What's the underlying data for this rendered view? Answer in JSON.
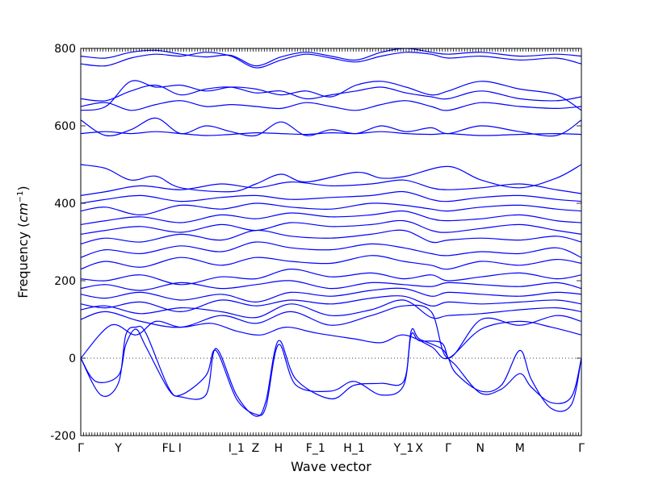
{
  "chart_data": {
    "type": "line",
    "title": "",
    "xlabel": "Wave vector",
    "ylabel": "Frequency (cm^-1)",
    "ylabel_text": "Frequency (",
    "ylabel_unit": "cm",
    "ylabel_exp": "−1",
    "ylabel_close": ")",
    "ylim": [
      -200,
      800
    ],
    "yticks": [
      -200,
      0,
      200,
      400,
      600,
      800
    ],
    "xlim": [
      0,
      1
    ],
    "xticks": [
      {
        "label": "Γ",
        "x": 0.0
      },
      {
        "label": "Y",
        "x": 0.075
      },
      {
        "label": "FL",
        "x": 0.175
      },
      {
        "label": "I",
        "x": 0.198
      },
      {
        "label": "I_1",
        "x": 0.311
      },
      {
        "label": "Z",
        "x": 0.349
      },
      {
        "label": "H",
        "x": 0.395
      },
      {
        "label": "F_1",
        "x": 0.469
      },
      {
        "label": "H_1",
        "x": 0.546
      },
      {
        "label": "Y_1",
        "x": 0.645
      },
      {
        "label": "X",
        "x": 0.676
      },
      {
        "label": "Γ",
        "x": 0.734
      },
      {
        "label": "N",
        "x": 0.798
      },
      {
        "label": "M",
        "x": 0.877
      },
      {
        "label": "Γ",
        "x": 1.0
      }
    ],
    "grid": false,
    "reference_line_y": 0,
    "color": "#0000ff",
    "series": [
      {
        "x": [
          0,
          0.03,
          0.075,
          0.09,
          0.11,
          0.13,
          0.175,
          0.2,
          0.25,
          0.27,
          0.311,
          0.35,
          0.37,
          0.395,
          0.43,
          0.5,
          0.546,
          0.6,
          0.645,
          0.66,
          0.676,
          0.72,
          0.734,
          0.75,
          0.798,
          0.84,
          0.877,
          0.9,
          0.94,
          0.98,
          1.0
        ],
        "values": [
          0,
          -60,
          -45,
          35,
          75,
          30,
          -80,
          -100,
          -95,
          25,
          -95,
          -150,
          -110,
          45,
          -55,
          -105,
          -70,
          -65,
          -60,
          60,
          45,
          40,
          0,
          -20,
          -90,
          -80,
          -40,
          -75,
          -115,
          -100,
          0
        ]
      },
      {
        "x": [
          0,
          0.04,
          0.075,
          0.09,
          0.11,
          0.13,
          0.175,
          0.2,
          0.25,
          0.27,
          0.311,
          0.35,
          0.37,
          0.395,
          0.43,
          0.5,
          0.546,
          0.6,
          0.645,
          0.66,
          0.676,
          0.72,
          0.734,
          0.75,
          0.798,
          0.84,
          0.877,
          0.9,
          0.94,
          0.98,
          1.0
        ],
        "values": [
          0,
          -95,
          -65,
          60,
          80,
          65,
          -75,
          -95,
          -45,
          20,
          -105,
          -145,
          -125,
          35,
          -70,
          -85,
          -60,
          -95,
          -70,
          70,
          50,
          25,
          0,
          -40,
          -85,
          -70,
          20,
          -55,
          -130,
          -120,
          0
        ]
      },
      {
        "x": [
          0,
          0.06,
          0.11,
          0.15,
          0.2,
          0.26,
          0.311,
          0.36,
          0.41,
          0.47,
          0.546,
          0.6,
          0.645,
          0.7,
          0.734,
          0.8,
          0.877,
          0.94,
          1.0
        ],
        "values": [
          0,
          85,
          60,
          95,
          80,
          90,
          70,
          60,
          80,
          65,
          50,
          40,
          60,
          30,
          0,
          75,
          95,
          80,
          60
        ]
      },
      {
        "x": [
          0,
          0.05,
          0.12,
          0.2,
          0.28,
          0.35,
          0.42,
          0.5,
          0.58,
          0.645,
          0.7,
          0.734,
          0.8,
          0.877,
          0.95,
          1.0
        ],
        "values": [
          100,
          120,
          95,
          80,
          110,
          90,
          120,
          85,
          110,
          135,
          120,
          0,
          100,
          85,
          110,
          95
        ]
      },
      {
        "x": [
          0,
          0.05,
          0.12,
          0.2,
          0.28,
          0.35,
          0.42,
          0.5,
          0.58,
          0.645,
          0.7,
          0.734,
          0.8,
          0.877,
          0.95,
          1.0
        ],
        "values": [
          125,
          135,
          115,
          130,
          120,
          105,
          140,
          110,
          125,
          150,
          105,
          110,
          115,
          125,
          130,
          120
        ]
      },
      {
        "x": [
          0,
          0.05,
          0.12,
          0.2,
          0.28,
          0.35,
          0.42,
          0.5,
          0.58,
          0.645,
          0.7,
          0.734,
          0.8,
          0.877,
          0.95,
          1.0
        ],
        "values": [
          140,
          130,
          145,
          120,
          150,
          135,
          150,
          140,
          155,
          160,
          135,
          145,
          140,
          145,
          150,
          140
        ]
      },
      {
        "x": [
          0,
          0.05,
          0.12,
          0.2,
          0.28,
          0.35,
          0.42,
          0.5,
          0.58,
          0.645,
          0.7,
          0.734,
          0.8,
          0.877,
          0.95,
          1.0
        ],
        "values": [
          165,
          155,
          170,
          150,
          165,
          145,
          170,
          160,
          175,
          180,
          160,
          170,
          165,
          160,
          170,
          165
        ]
      },
      {
        "x": [
          0,
          0.05,
          0.12,
          0.2,
          0.28,
          0.35,
          0.42,
          0.5,
          0.58,
          0.645,
          0.7,
          0.734,
          0.8,
          0.877,
          0.95,
          1.0
        ],
        "values": [
          180,
          190,
          175,
          195,
          180,
          190,
          200,
          180,
          195,
          190,
          185,
          195,
          190,
          185,
          195,
          180
        ]
      },
      {
        "x": [
          0,
          0.05,
          0.12,
          0.2,
          0.28,
          0.35,
          0.42,
          0.5,
          0.58,
          0.645,
          0.7,
          0.734,
          0.8,
          0.877,
          0.95,
          1.0
        ],
        "values": [
          205,
          200,
          215,
          190,
          210,
          205,
          230,
          210,
          220,
          205,
          215,
          200,
          210,
          220,
          205,
          215
        ]
      },
      {
        "x": [
          0,
          0.05,
          0.12,
          0.2,
          0.28,
          0.35,
          0.42,
          0.5,
          0.58,
          0.645,
          0.7,
          0.734,
          0.8,
          0.877,
          0.95,
          1.0
        ],
        "values": [
          230,
          250,
          235,
          260,
          240,
          260,
          250,
          245,
          265,
          250,
          240,
          230,
          250,
          240,
          255,
          245
        ]
      },
      {
        "x": [
          0,
          0.05,
          0.12,
          0.2,
          0.28,
          0.35,
          0.42,
          0.5,
          0.58,
          0.645,
          0.7,
          0.734,
          0.8,
          0.877,
          0.95,
          1.0
        ],
        "values": [
          260,
          280,
          270,
          290,
          275,
          300,
          285,
          280,
          295,
          285,
          270,
          265,
          275,
          270,
          285,
          260
        ]
      },
      {
        "x": [
          0,
          0.05,
          0.12,
          0.2,
          0.28,
          0.35,
          0.42,
          0.5,
          0.58,
          0.645,
          0.7,
          0.734,
          0.8,
          0.877,
          0.95,
          1.0
        ],
        "values": [
          295,
          310,
          300,
          320,
          305,
          330,
          315,
          310,
          320,
          330,
          300,
          305,
          310,
          305,
          315,
          300
        ]
      },
      {
        "x": [
          0,
          0.05,
          0.12,
          0.2,
          0.28,
          0.35,
          0.42,
          0.5,
          0.58,
          0.645,
          0.7,
          0.734,
          0.8,
          0.877,
          0.95,
          1.0
        ],
        "values": [
          320,
          330,
          340,
          325,
          345,
          330,
          350,
          340,
          345,
          355,
          330,
          325,
          335,
          345,
          330,
          320
        ]
      },
      {
        "x": [
          0,
          0.05,
          0.12,
          0.2,
          0.28,
          0.35,
          0.42,
          0.5,
          0.58,
          0.645,
          0.7,
          0.734,
          0.8,
          0.877,
          0.95,
          1.0
        ],
        "values": [
          345,
          355,
          365,
          350,
          370,
          360,
          375,
          365,
          370,
          380,
          360,
          355,
          360,
          370,
          355,
          350
        ]
      },
      {
        "x": [
          0,
          0.05,
          0.12,
          0.2,
          0.28,
          0.35,
          0.42,
          0.5,
          0.58,
          0.645,
          0.7,
          0.734,
          0.8,
          0.877,
          0.95,
          1.0
        ],
        "values": [
          380,
          390,
          370,
          395,
          385,
          400,
          390,
          385,
          400,
          395,
          385,
          380,
          390,
          395,
          385,
          380
        ]
      },
      {
        "x": [
          0,
          0.05,
          0.12,
          0.2,
          0.28,
          0.35,
          0.42,
          0.5,
          0.58,
          0.645,
          0.7,
          0.734,
          0.8,
          0.877,
          0.95,
          1.0
        ],
        "values": [
          400,
          410,
          420,
          405,
          415,
          420,
          410,
          415,
          420,
          430,
          410,
          405,
          415,
          420,
          410,
          405
        ]
      },
      {
        "x": [
          0,
          0.05,
          0.12,
          0.2,
          0.28,
          0.35,
          0.42,
          0.5,
          0.58,
          0.645,
          0.7,
          0.734,
          0.8,
          0.877,
          0.95,
          1.0
        ],
        "values": [
          420,
          430,
          445,
          435,
          450,
          440,
          455,
          445,
          450,
          460,
          440,
          435,
          440,
          450,
          435,
          425
        ]
      },
      {
        "x": [
          0,
          0.05,
          0.1,
          0.15,
          0.2,
          0.3,
          0.35,
          0.4,
          0.45,
          0.55,
          0.6,
          0.65,
          0.734,
          0.8,
          0.877,
          0.95,
          1.0
        ],
        "values": [
          500,
          490,
          460,
          470,
          440,
          430,
          450,
          475,
          455,
          480,
          465,
          470,
          495,
          460,
          440,
          465,
          500
        ]
      },
      {
        "x": [
          0,
          0.05,
          0.1,
          0.15,
          0.2,
          0.25,
          0.3,
          0.35,
          0.4,
          0.45,
          0.5,
          0.55,
          0.6,
          0.65,
          0.7,
          0.734,
          0.8,
          0.877,
          0.95,
          1.0
        ],
        "values": [
          615,
          575,
          590,
          620,
          580,
          600,
          585,
          575,
          610,
          575,
          590,
          580,
          600,
          585,
          595,
          580,
          600,
          585,
          575,
          615
        ]
      },
      {
        "x": [
          0,
          0.05,
          0.1,
          0.15,
          0.2,
          0.25,
          0.3,
          0.35,
          0.4,
          0.45,
          0.5,
          0.55,
          0.6,
          0.65,
          0.7,
          0.734,
          0.8,
          0.877,
          0.95,
          1.0
        ],
        "values": [
          580,
          585,
          580,
          585,
          580,
          575,
          578,
          582,
          580,
          578,
          582,
          580,
          585,
          580,
          578,
          580,
          575,
          578,
          580,
          578
        ]
      },
      {
        "x": [
          0,
          0.05,
          0.1,
          0.15,
          0.2,
          0.25,
          0.3,
          0.35,
          0.4,
          0.45,
          0.5,
          0.55,
          0.6,
          0.65,
          0.7,
          0.734,
          0.8,
          0.877,
          0.95,
          1.0
        ],
        "values": [
          650,
          660,
          640,
          655,
          665,
          650,
          655,
          650,
          645,
          660,
          650,
          640,
          655,
          665,
          650,
          640,
          660,
          650,
          645,
          650
        ]
      },
      {
        "x": [
          0,
          0.05,
          0.1,
          0.15,
          0.2,
          0.25,
          0.3,
          0.35,
          0.4,
          0.45,
          0.5,
          0.55,
          0.6,
          0.65,
          0.7,
          0.734,
          0.8,
          0.877,
          0.95,
          1.0
        ],
        "values": [
          670,
          665,
          690,
          705,
          680,
          695,
          700,
          685,
          690,
          670,
          680,
          690,
          700,
          685,
          675,
          670,
          690,
          670,
          665,
          675
        ]
      },
      {
        "x": [
          0,
          0.05,
          0.1,
          0.15,
          0.2,
          0.25,
          0.3,
          0.35,
          0.4,
          0.45,
          0.5,
          0.55,
          0.6,
          0.65,
          0.7,
          0.734,
          0.8,
          0.877,
          0.95,
          1.0
        ],
        "values": [
          640,
          650,
          715,
          700,
          705,
          690,
          700,
          695,
          680,
          690,
          675,
          705,
          715,
          700,
          680,
          690,
          715,
          695,
          680,
          640
        ]
      },
      {
        "x": [
          0,
          0.05,
          0.1,
          0.15,
          0.2,
          0.25,
          0.3,
          0.35,
          0.4,
          0.45,
          0.5,
          0.55,
          0.6,
          0.65,
          0.7,
          0.734,
          0.8,
          0.877,
          0.95,
          1.0
        ],
        "values": [
          760,
          755,
          775,
          785,
          780,
          790,
          780,
          750,
          770,
          785,
          775,
          765,
          780,
          790,
          785,
          775,
          780,
          770,
          775,
          760
        ]
      },
      {
        "x": [
          0,
          0.05,
          0.1,
          0.15,
          0.2,
          0.25,
          0.3,
          0.35,
          0.4,
          0.45,
          0.5,
          0.55,
          0.6,
          0.65,
          0.7,
          0.734,
          0.8,
          0.877,
          0.95,
          1.0
        ],
        "values": [
          780,
          775,
          790,
          795,
          785,
          778,
          782,
          755,
          778,
          790,
          780,
          770,
          790,
          800,
          790,
          785,
          790,
          780,
          785,
          780
        ]
      }
    ]
  }
}
